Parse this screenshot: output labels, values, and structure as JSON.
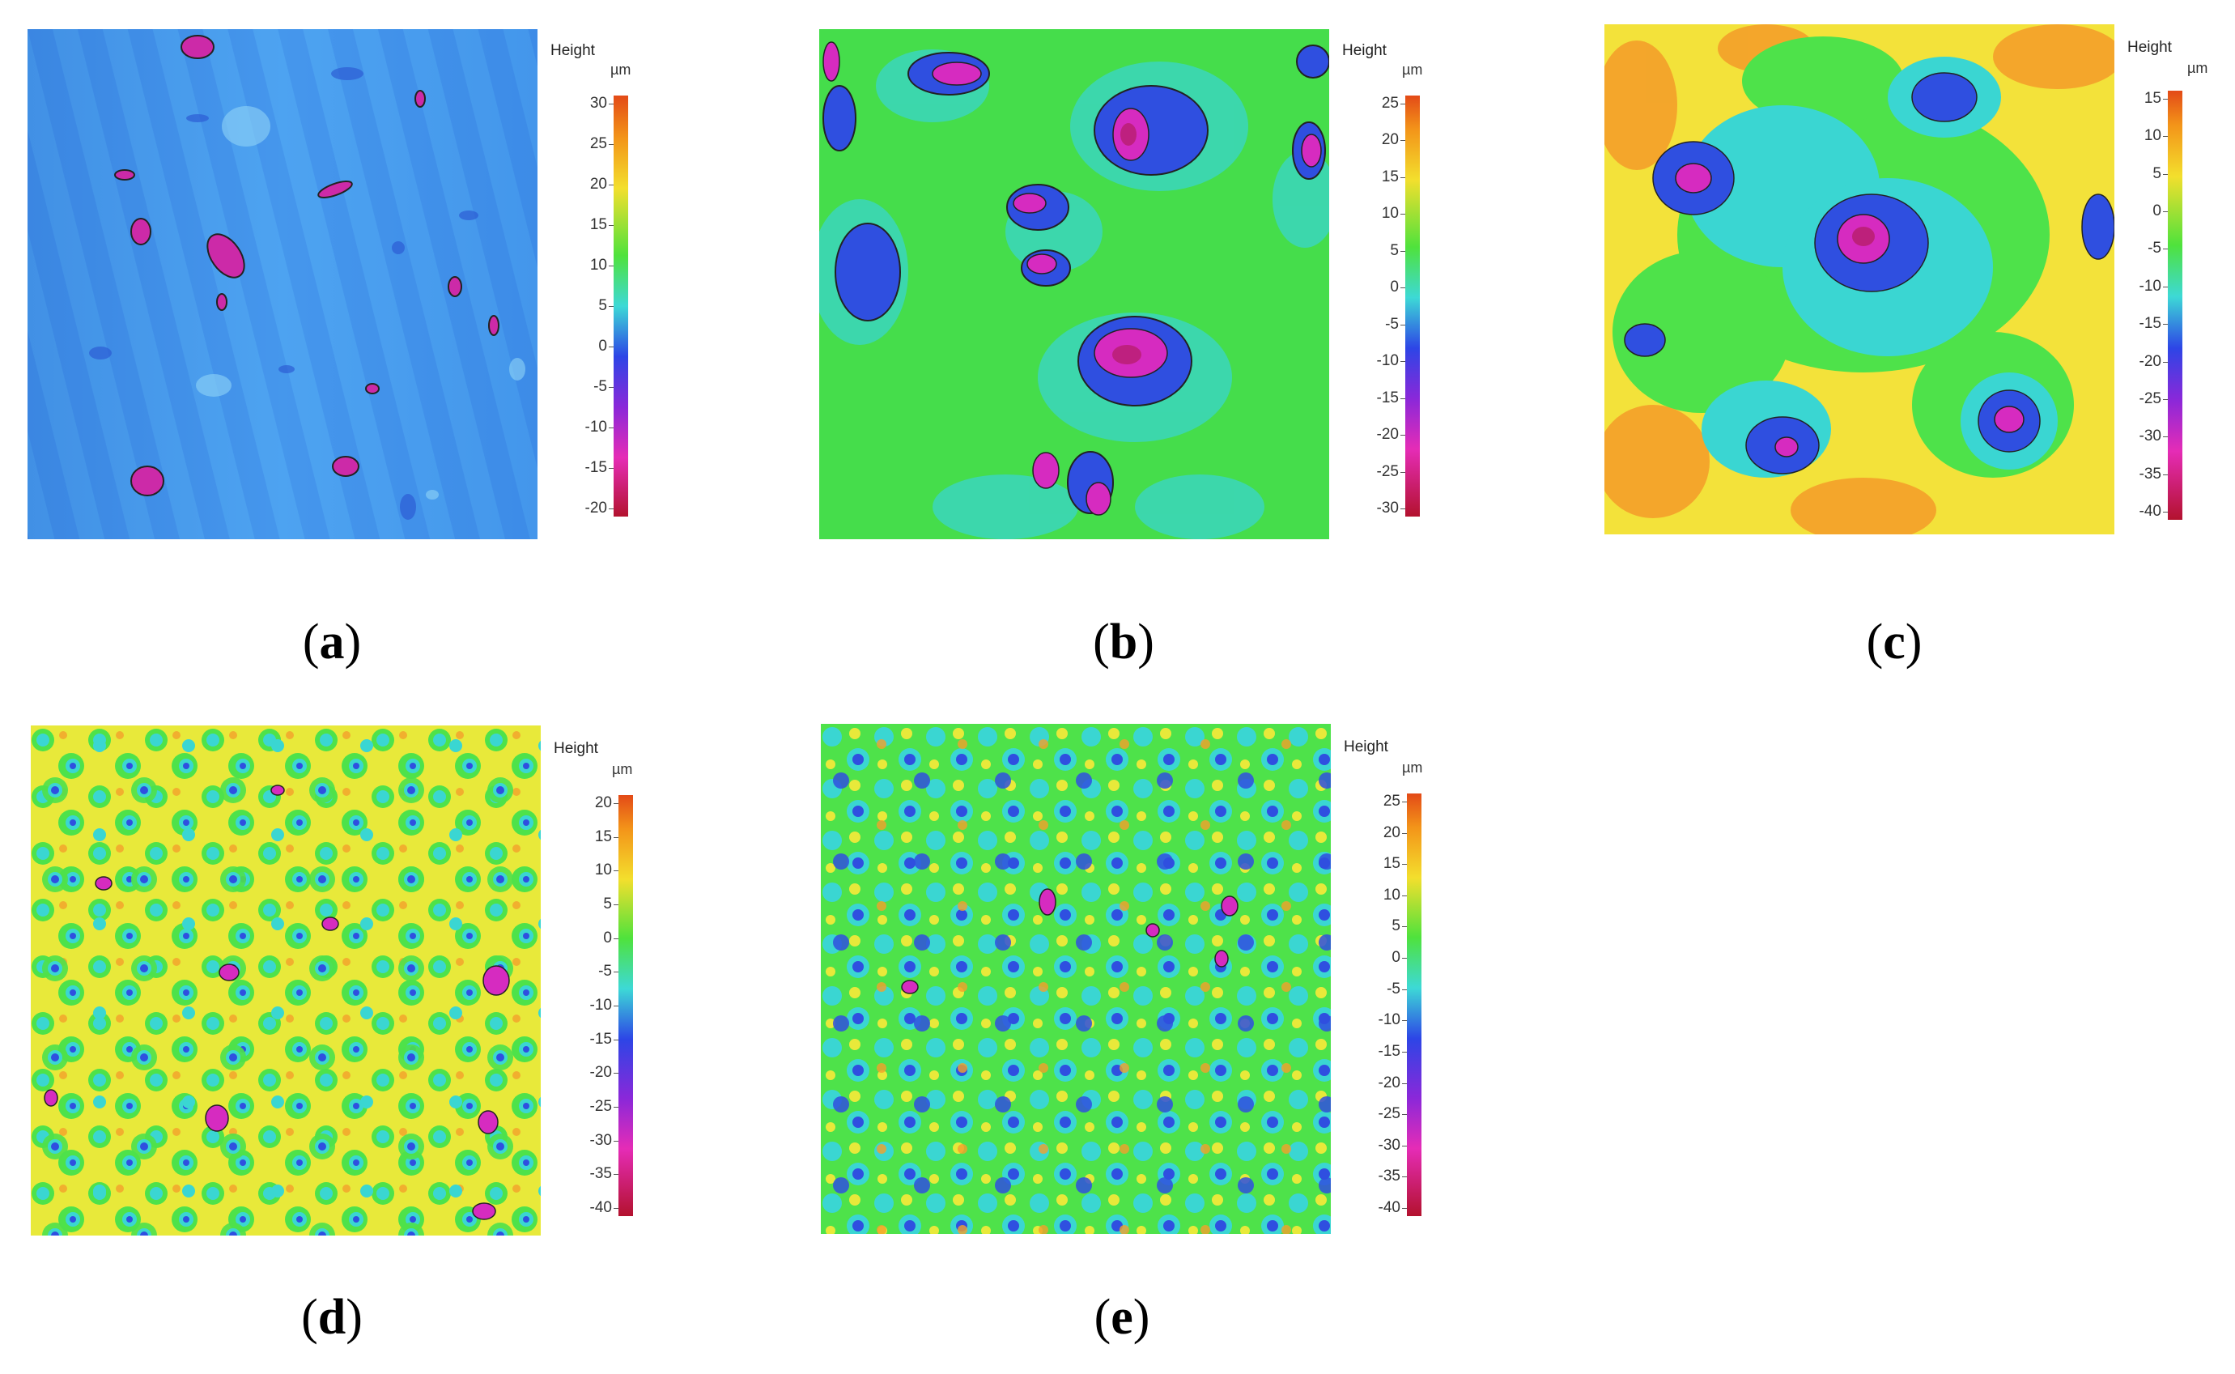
{
  "panels": [
    {
      "caption_open": "(",
      "caption_letter": "a",
      "caption_close": ")",
      "legend_title": "Height",
      "legend_unit": "µm",
      "ticks": [
        "30",
        "25",
        "20",
        "15",
        "10",
        "5",
        "0",
        "-5",
        "-10",
        "-15",
        "-20"
      ],
      "base_color": "#3d8fe6"
    },
    {
      "caption_open": "(",
      "caption_letter": "b",
      "caption_close": ")",
      "legend_title": "Height",
      "legend_unit": "µm",
      "ticks": [
        "25",
        "20",
        "15",
        "10",
        "5",
        "0",
        "-5",
        "-10",
        "-15",
        "-20",
        "-25",
        "-30"
      ],
      "base_color": "#3ee04a"
    },
    {
      "caption_open": "(",
      "caption_letter": "c",
      "caption_close": ")",
      "legend_title": "Height",
      "legend_unit": "µm",
      "ticks": [
        "15",
        "10",
        "5",
        "0",
        "-5",
        "-10",
        "-15",
        "-20",
        "-25",
        "-30",
        "-35",
        "-40"
      ],
      "base_color": "#f2e23a"
    },
    {
      "caption_open": "(",
      "caption_letter": "d",
      "caption_close": ")",
      "legend_title": "Height",
      "legend_unit": "µm",
      "ticks": [
        "20",
        "15",
        "10",
        "5",
        "0",
        "-5",
        "-10",
        "-15",
        "-20",
        "-25",
        "-30",
        "-35",
        "-40"
      ],
      "base_color": "#9be83a"
    },
    {
      "caption_open": "(",
      "caption_letter": "e",
      "caption_close": ")",
      "legend_title": "Height",
      "legend_unit": "µm",
      "ticks": [
        "25",
        "20",
        "15",
        "10",
        "5",
        "0",
        "-5",
        "-10",
        "-15",
        "-20",
        "-25",
        "-30",
        "-35",
        "-40"
      ],
      "base_color": "#4fdc6a"
    }
  ]
}
